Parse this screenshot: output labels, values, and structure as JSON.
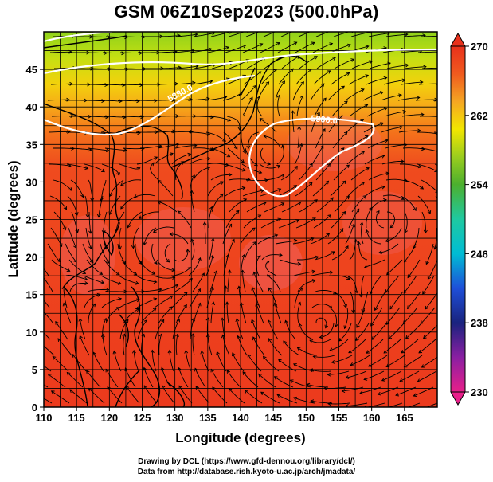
{
  "title": "GSM 06Z10Sep2023 (500.0hPa)",
  "axes": {
    "xlabel": "Longitude (degrees)",
    "ylabel": "Latitude  (degrees)",
    "xlim": [
      110,
      170
    ],
    "ylim": [
      0,
      50
    ],
    "xticks": [
      "110",
      "115",
      "120",
      "125",
      "130",
      "135",
      "140",
      "145",
      "150",
      "155",
      "160",
      "165"
    ],
    "yticks": [
      "0",
      "5",
      "10",
      "15",
      "20",
      "25",
      "30",
      "35",
      "40",
      "45"
    ]
  },
  "colorbar": {
    "min": 230,
    "max": 270,
    "tick_labels": [
      "270",
      "262",
      "254",
      "246",
      "238",
      "230"
    ],
    "colors": [
      "#e81f8a",
      "#7b1fa2",
      "#1a237e",
      "#1e4fd8",
      "#00bcd4",
      "#26c6a0",
      "#4caf2e",
      "#9acd1e",
      "#f2e600",
      "#f5a623",
      "#f05a1e",
      "#e8311c"
    ]
  },
  "contours": {
    "labels": [
      "5880.0",
      "5900.0"
    ],
    "color": "#ffffff"
  },
  "credits": {
    "line1": "Drawing by DCL (https://www.gfd-dennou.org/library/dcl/)",
    "line2": "Data from http://database.rish.kyoto-u.ac.jp/arch/jmadata/"
  },
  "chart_data": {
    "type": "heatmap",
    "title": "GSM 06Z10Sep2023 (500.0hPa)",
    "xlabel": "Longitude (degrees)",
    "ylabel": "Latitude  (degrees)",
    "xlim": [
      110,
      170
    ],
    "ylim": [
      0,
      50
    ],
    "color_range": [
      230,
      270
    ],
    "field_description_values": [
      {
        "lat": 48,
        "value": 256
      },
      {
        "lat": 45,
        "value": 258
      },
      {
        "lat": 40,
        "value": 262
      },
      {
        "lat": 35,
        "value": 265
      },
      {
        "lat": 30,
        "value": 267
      },
      {
        "lat": 20,
        "value": 268
      },
      {
        "lat": 10,
        "value": 267
      },
      {
        "lat": 0,
        "value": 268
      }
    ],
    "contour_levels": [
      5880.0,
      5900.0
    ],
    "grid": true
  }
}
